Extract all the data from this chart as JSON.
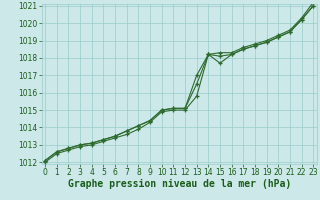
{
  "x": [
    0,
    1,
    2,
    3,
    4,
    5,
    6,
    7,
    8,
    9,
    10,
    11,
    12,
    13,
    14,
    15,
    16,
    17,
    18,
    19,
    20,
    21,
    22,
    23
  ],
  "line1": [
    1012.0,
    1012.5,
    1012.7,
    1012.9,
    1013.0,
    1013.2,
    1013.4,
    1013.6,
    1013.9,
    1014.3,
    1014.9,
    1015.0,
    1015.0,
    1015.8,
    1018.2,
    1018.1,
    1018.2,
    1018.5,
    1018.7,
    1018.9,
    1019.2,
    1019.5,
    1020.2,
    1021.0
  ],
  "line2": [
    1012.1,
    1012.6,
    1012.8,
    1013.0,
    1013.1,
    1013.3,
    1013.5,
    1013.8,
    1014.1,
    1014.4,
    1015.0,
    1015.1,
    1015.1,
    1016.5,
    1018.2,
    1018.3,
    1018.3,
    1018.6,
    1018.8,
    1019.0,
    1019.3,
    1019.6,
    1020.3,
    1021.2
  ],
  "line3": [
    1012.1,
    1012.6,
    1012.8,
    1013.0,
    1013.1,
    1013.3,
    1013.5,
    1013.8,
    1014.1,
    1014.4,
    1015.0,
    1015.1,
    1015.1,
    1017.0,
    1018.2,
    1017.7,
    1018.2,
    1018.5,
    1018.7,
    1018.9,
    1019.2,
    1019.5,
    1020.2,
    1021.0
  ],
  "ylim_min": 1012,
  "ylim_max": 1021,
  "yticks": [
    1012,
    1013,
    1014,
    1015,
    1016,
    1017,
    1018,
    1019,
    1020,
    1021
  ],
  "xticks": [
    0,
    1,
    2,
    3,
    4,
    5,
    6,
    7,
    8,
    9,
    10,
    11,
    12,
    13,
    14,
    15,
    16,
    17,
    18,
    19,
    20,
    21,
    22,
    23
  ],
  "line_color": "#2d6a2d",
  "bg_color": "#cce8e8",
  "grid_color": "#99cccc",
  "xlabel": "Graphe pression niveau de la mer (hPa)",
  "xlabel_color": "#1a5c1a",
  "tick_color": "#1a5c1a",
  "marker": "+",
  "marker_size": 3,
  "line_width": 0.8,
  "tick_fontsize": 5.5,
  "xlabel_fontsize": 7
}
